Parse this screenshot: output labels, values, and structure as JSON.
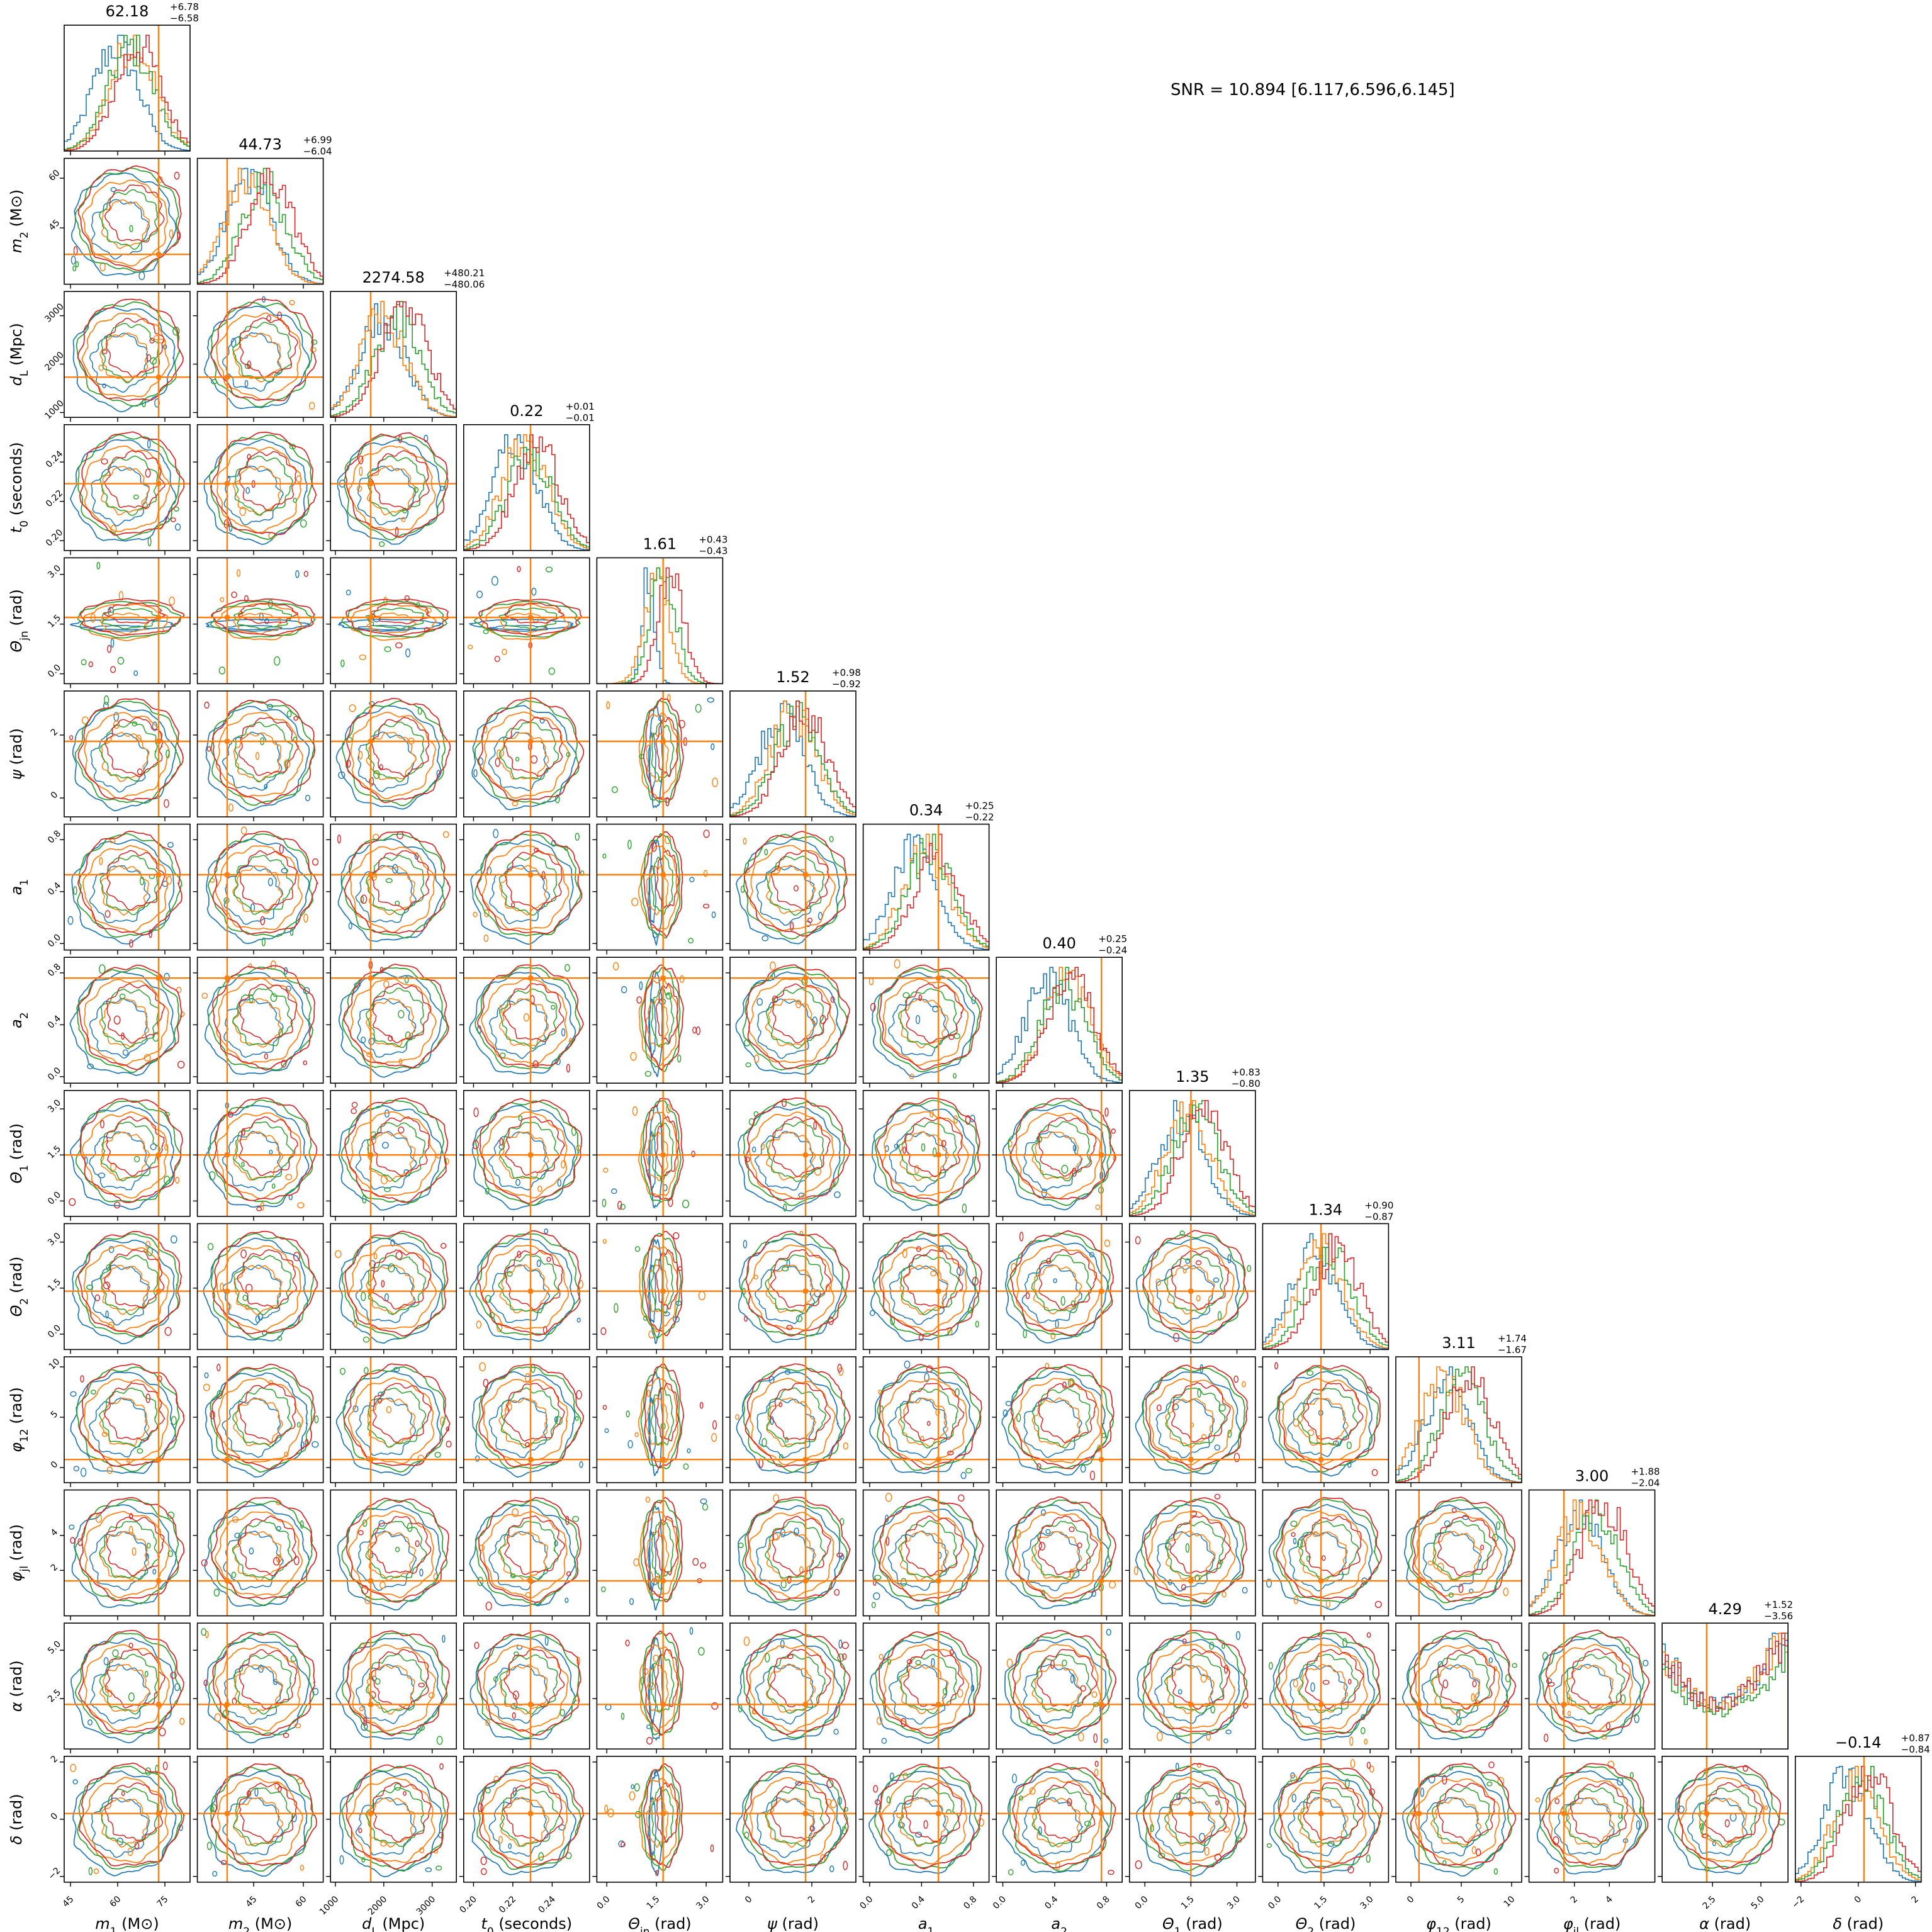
{
  "chart_data": {
    "type": "corner",
    "annotation": "SNR = 10.894 [6.117,6.596,6.145]",
    "colors": {
      "blue": "#1f77b4",
      "orange": "#ff7f0e",
      "green": "#2ca02c",
      "red": "#d62728",
      "truth": "#ff7f0e"
    },
    "parameters": [
      {
        "label": "m_1 (M⊙)",
        "median": "62.18",
        "plus": "+6.78",
        "minus": "−6.58",
        "range": [
          43,
          83
        ],
        "ticks": [
          "45",
          "60",
          "75"
        ],
        "tick_values": [
          45,
          60,
          75
        ],
        "truth": 73
      },
      {
        "label": "m_2 (M⊙)",
        "median": "44.73",
        "plus": "+6.99",
        "minus": "−6.04",
        "range": [
          28,
          66
        ],
        "ticks": [
          "45",
          "60"
        ],
        "tick_values": [
          45,
          60
        ],
        "truth": 37
      },
      {
        "label": "d_L (Mpc)",
        "median": "2274.58",
        "plus": "+480.21",
        "minus": "−480.06",
        "range": [
          900,
          3500
        ],
        "ticks": [
          "1000",
          "2000",
          "3000"
        ],
        "tick_values": [
          1000,
          2000,
          3000
        ],
        "truth": 1730
      },
      {
        "label": "t_0 (seconds)",
        "median": "0.22",
        "plus": "+0.01",
        "minus": "−0.01",
        "range": [
          0.195,
          0.259
        ],
        "ticks": [
          "0.20",
          "0.22",
          "0.24"
        ],
        "tick_values": [
          0.2,
          0.22,
          0.24
        ],
        "truth": 0.229
      },
      {
        "label": "Θ_jn (rad)",
        "median": "1.61",
        "plus": "+0.43",
        "minus": "−0.43",
        "range": [
          -0.3,
          3.5
        ],
        "ticks": [
          "0.0",
          "1.5",
          "3.0"
        ],
        "tick_values": [
          0.0,
          1.5,
          3.0
        ],
        "truth": 1.7
      },
      {
        "label": "ψ (rad)",
        "median": "1.52",
        "plus": "+0.98",
        "minus": "−0.92",
        "range": [
          -0.6,
          3.4
        ],
        "ticks": [
          "0",
          "2"
        ],
        "tick_values": [
          0,
          2
        ],
        "truth": 1.8
      },
      {
        "label": "a_1",
        "median": "0.34",
        "plus": "+0.25",
        "minus": "−0.22",
        "range": [
          -0.05,
          0.92
        ],
        "ticks": [
          "0.0",
          "0.4",
          "0.8"
        ],
        "tick_values": [
          0.0,
          0.4,
          0.8
        ],
        "truth": 0.53
      },
      {
        "label": "a_2",
        "median": "0.40",
        "plus": "+0.25",
        "minus": "−0.24",
        "range": [
          -0.05,
          0.92
        ],
        "ticks": [
          "0.0",
          "0.4",
          "0.8"
        ],
        "tick_values": [
          0.0,
          0.4,
          0.8
        ],
        "truth": 0.76
      },
      {
        "label": "Θ_1 (rad)",
        "median": "1.35",
        "plus": "+0.83",
        "minus": "−0.80",
        "range": [
          -0.5,
          3.6
        ],
        "ticks": [
          "0.0",
          "1.5",
          "3.0"
        ],
        "tick_values": [
          0.0,
          1.5,
          3.0
        ],
        "truth": 1.5
      },
      {
        "label": "Θ_2 (rad)",
        "median": "1.34",
        "plus": "+0.90",
        "minus": "−0.87",
        "range": [
          -0.5,
          3.6
        ],
        "ticks": [
          "0.0",
          "1.5",
          "3.0"
        ],
        "tick_values": [
          0.0,
          1.5,
          3.0
        ],
        "truth": 1.4
      },
      {
        "label": "φ_12 (rad)",
        "median": "3.11",
        "plus": "+1.74",
        "minus": "−1.67",
        "range": [
          -1.5,
          11
        ],
        "ticks": [
          "0",
          "5",
          "10"
        ],
        "tick_values": [
          0,
          5,
          10
        ],
        "truth": 0.8
      },
      {
        "label": "φ_jl (rad)",
        "median": "3.00",
        "plus": "+1.88",
        "minus": "−2.04",
        "range": [
          -0.6,
          6.6
        ],
        "ticks": [
          "2",
          "4"
        ],
        "tick_values": [
          2,
          4
        ],
        "truth": 1.4
      },
      {
        "label": "α (rad)",
        "median": "4.29",
        "plus": "+1.52",
        "minus": "−3.56",
        "range": [
          -0.1,
          6.4
        ],
        "ticks": [
          "2.5",
          "5.0"
        ],
        "tick_values": [
          2.5,
          5.0
        ],
        "truth": 2.2
      },
      {
        "label": "δ (rad)",
        "median": "−0.14",
        "plus": "+0.87",
        "minus": "−0.84",
        "range": [
          -2.2,
          2.2
        ],
        "ticks": [
          "−2",
          "0",
          "2"
        ],
        "tick_values": [
          -2,
          0,
          2
        ],
        "truth": 0.2
      }
    ]
  }
}
